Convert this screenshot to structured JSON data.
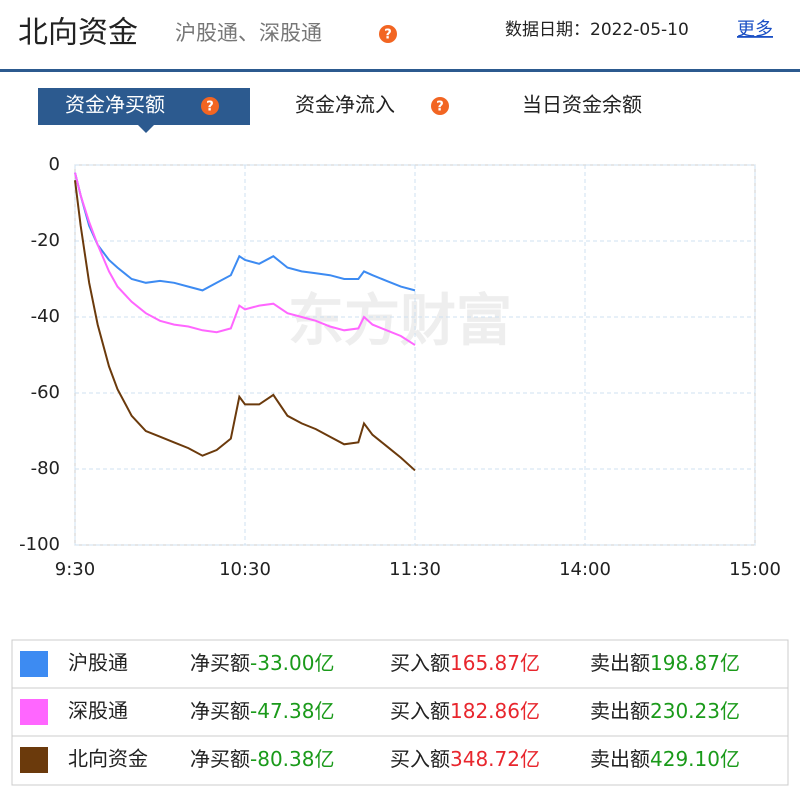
{
  "header": {
    "title": "北向资金",
    "subtitle": "沪股通、深股通",
    "date_label": "数据日期：",
    "date": "2022-05-10",
    "more": "更多"
  },
  "tabs": [
    "资金净买额",
    "资金净流入",
    "当日资金余额"
  ],
  "chart_data": {
    "type": "line",
    "watermark": "东方财富",
    "x": [
      0,
      2,
      5,
      8,
      12,
      15,
      20,
      25,
      30,
      35,
      40,
      45,
      50,
      55,
      58,
      60,
      65,
      70,
      75,
      80,
      85,
      90,
      95,
      100,
      102,
      105,
      110,
      115,
      120
    ],
    "xlim": [
      0,
      240
    ],
    "xticks": [
      {
        "value": 0,
        "label": "9:30"
      },
      {
        "value": 60,
        "label": "10:30"
      },
      {
        "value": 120,
        "label": "11:30"
      },
      {
        "value": 180,
        "label": "14:00"
      },
      {
        "value": 240,
        "label": "15:00"
      }
    ],
    "ylim": [
      -100,
      0
    ],
    "yticks": [
      0,
      -20,
      -40,
      -60,
      -80,
      -100
    ],
    "grid": true,
    "series": [
      {
        "name": "沪股通",
        "color": "#3d8bf2",
        "values": [
          -2,
          -8,
          -16,
          -21,
          -25,
          -27,
          -30,
          -31,
          -30.5,
          -31,
          -32,
          -33,
          -31,
          -29,
          -24,
          -25,
          -26,
          -24,
          -27,
          -28,
          -28.5,
          -29,
          -30,
          -30,
          -28,
          -29,
          -30.5,
          -32,
          -33
        ]
      },
      {
        "name": "深股通",
        "color": "#ff66ff",
        "values": [
          -2,
          -8,
          -15,
          -21,
          -28,
          -32,
          -36,
          -39,
          -41,
          -42,
          -42.5,
          -43.5,
          -44,
          -43,
          -37,
          -38,
          -37,
          -36.5,
          -39,
          -40,
          -41,
          -42.5,
          -43.5,
          -43,
          -40,
          -42,
          -43.5,
          -45,
          -47.38
        ]
      },
      {
        "name": "北向资金",
        "color": "#6b3a0c",
        "values": [
          -4,
          -16,
          -31,
          -42,
          -53,
          -59,
          -66,
          -70,
          -71.5,
          -73,
          -74.5,
          -76.5,
          -75,
          -72,
          -61,
          -63,
          -63,
          -60.5,
          -66,
          -68,
          -69.5,
          -71.5,
          -73.5,
          -73,
          -68,
          -71,
          -74,
          -77,
          -80.38
        ]
      }
    ]
  },
  "summary": {
    "rows": [
      {
        "net_label": "净买额",
        "net": "-33.00亿",
        "buy_label": "买入额",
        "buy": "165.87亿",
        "sell_label": "卖出额",
        "sell": "198.87亿"
      },
      {
        "net_label": "净买额",
        "net": "-47.38亿",
        "buy_label": "买入额",
        "buy": "182.86亿",
        "sell_label": "卖出额",
        "sell": "230.23亿"
      },
      {
        "net_label": "净买额",
        "net": "-80.38亿",
        "buy_label": "买入额",
        "buy": "348.72亿",
        "sell_label": "卖出额",
        "sell": "429.10亿"
      }
    ]
  }
}
